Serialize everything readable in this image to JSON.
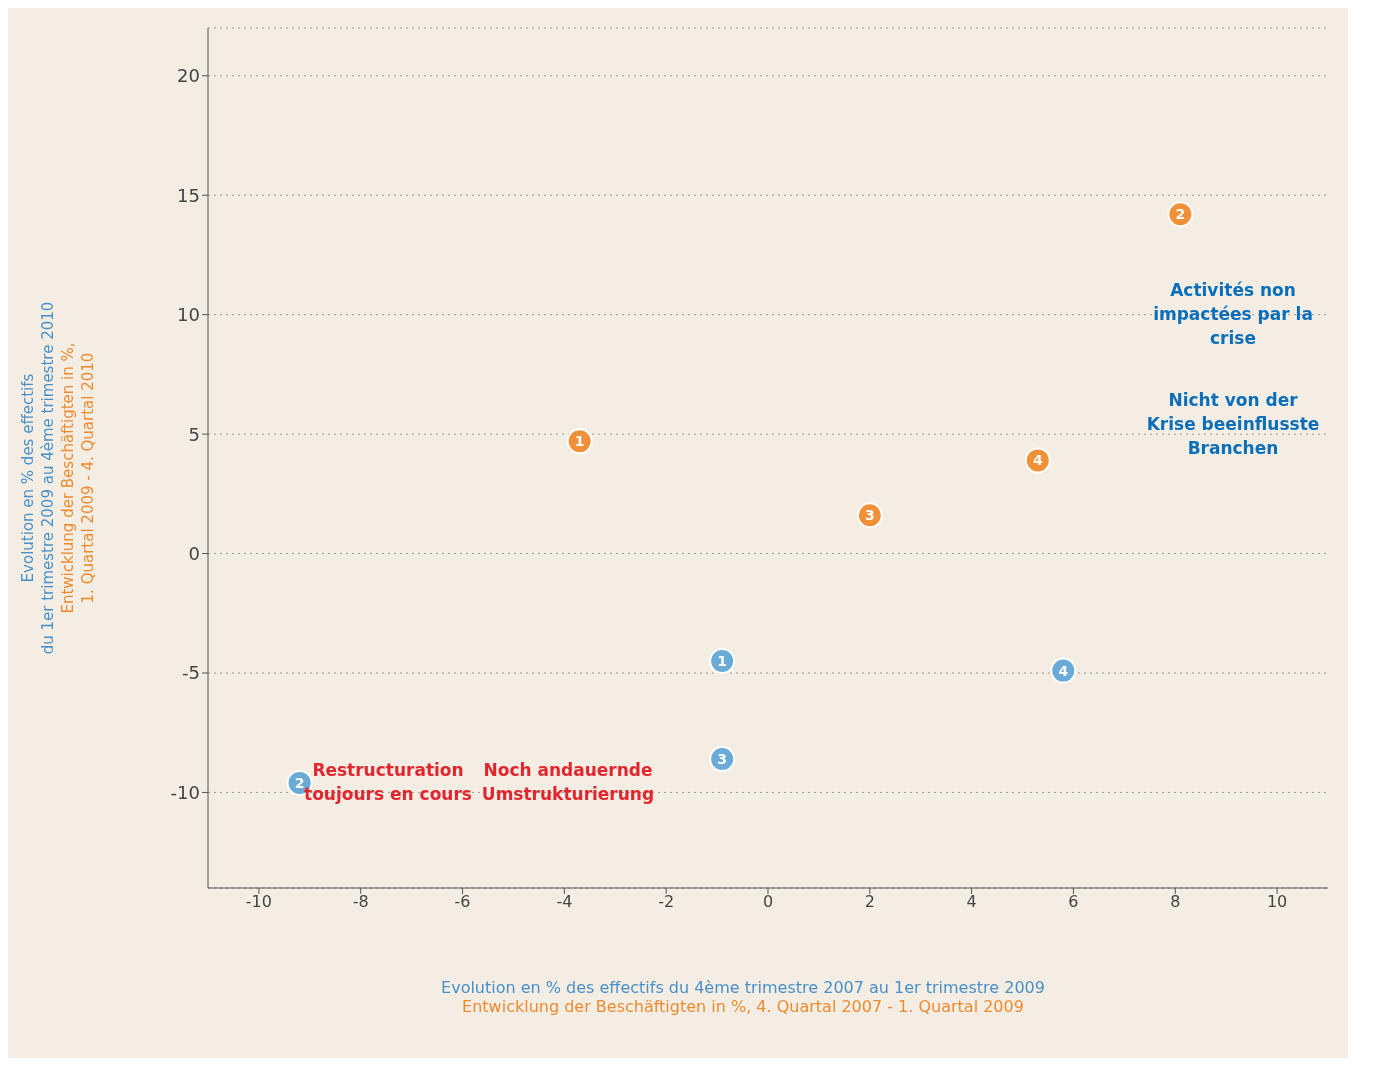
{
  "chart_data": {
    "type": "scatter",
    "xlabel": "Evolution en % des effectifs du 4ème trimestre 2007 au 1er trimestre 2009\nEntwicklung der Beschäftigten in %, 4. Quartal 2007 - 1. Quartal 2009",
    "ylabel": "Evolution en % des effectifs\ndu 1er trimestre 2009 au 4ème trimestre 2010\nEntwicklung der Beschäftigten in %,\n1. Quartal 2009 - 4. Quartal 2010",
    "series": [
      {
        "color": "#f0913a",
        "x": [
          -3.7,
          8.1,
          2.0,
          5.3
        ],
        "values": [
          4.7,
          14.2,
          1.6,
          3.9
        ]
      },
      {
        "color": "#6aaad6",
        "x": [
          -0.9,
          -9.2,
          -0.9,
          5.8
        ],
        "values": [
          -4.5,
          -9.6,
          -8.6,
          -4.9
        ]
      }
    ],
    "annotations": [
      "Activités non impactées par la crise",
      "Nicht von der Krise beeinflusste Branchen",
      "Restructuration toujours en cours",
      "Noch andauernde Umstrukturierung",
      {
        "text": "1",
        "x": -3.7,
        "y": 4.7
      },
      {
        "text": "2",
        "x": 8.1,
        "y": 14.2
      },
      {
        "text": "3",
        "x": 2.0,
        "y": 1.6
      },
      {
        "text": "4",
        "x": 5.3,
        "y": 3.9
      },
      {
        "text": "1",
        "x": -0.9,
        "y": -4.5
      },
      {
        "text": "2",
        "x": -9.2,
        "y": -9.6
      },
      {
        "text": "3",
        "x": -0.9,
        "y": -8.6
      },
      {
        "text": "4",
        "x": 5.8,
        "y": -4.9
      }
    ],
    "xlim": [
      -11,
      11
    ],
    "xticks": [
      -10,
      -8,
      -6,
      -4,
      -2,
      0,
      2,
      4,
      6,
      8,
      10
    ],
    "ylim": [
      -14,
      22
    ],
    "yticks": [
      -10,
      -5,
      0,
      5,
      10,
      15,
      20
    ],
    "grid": "y",
    "marker": "circle"
  }
}
